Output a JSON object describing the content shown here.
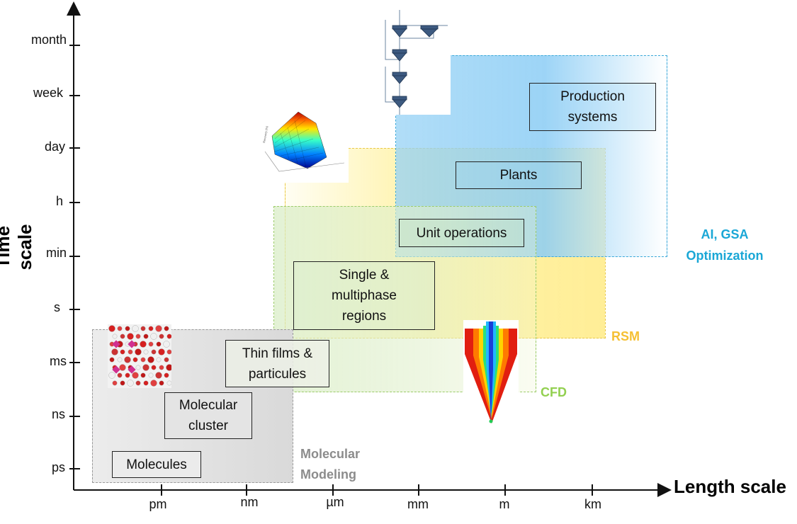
{
  "axes": {
    "y_title": "Time scale",
    "x_title": "Length scale",
    "y_ticks": [
      "month",
      "week",
      "day",
      "h",
      "min",
      "s",
      "ms",
      "ns",
      "ps"
    ],
    "x_ticks": [
      "pm",
      "nm",
      "µm",
      "mm",
      "m",
      "km"
    ]
  },
  "regions": {
    "molecular_modeling": "Molecular\nModeling",
    "cfd": "CFD",
    "rsm": "RSM",
    "ai_gsa": "AI, GSA\nOptimization"
  },
  "boxes": {
    "molecules": "Molecules",
    "molecular_cluster": "Molecular\ncluster",
    "thin_films": "Thin films &\nparticules",
    "single_multiphase": "Single &\nmultiphase\nregions",
    "unit_operations": "Unit operations",
    "plants": "Plants",
    "production_systems": "Production\nsystems"
  },
  "colors": {
    "molecular_modeling": "#8c8c8c",
    "cfd": "#92d050",
    "rsm": "#f5c034",
    "ai_gsa": "#1aa7d6",
    "region_blue": "#8ed0f5",
    "region_yellow": "#fff2a8",
    "region_green": "#e0f0cf",
    "region_gray": "#e3e3e3"
  },
  "icons": [
    "surface-plot-icon",
    "flowsheet-icon",
    "molecular-structure-icon",
    "cfd-nozzle-icon"
  ]
}
